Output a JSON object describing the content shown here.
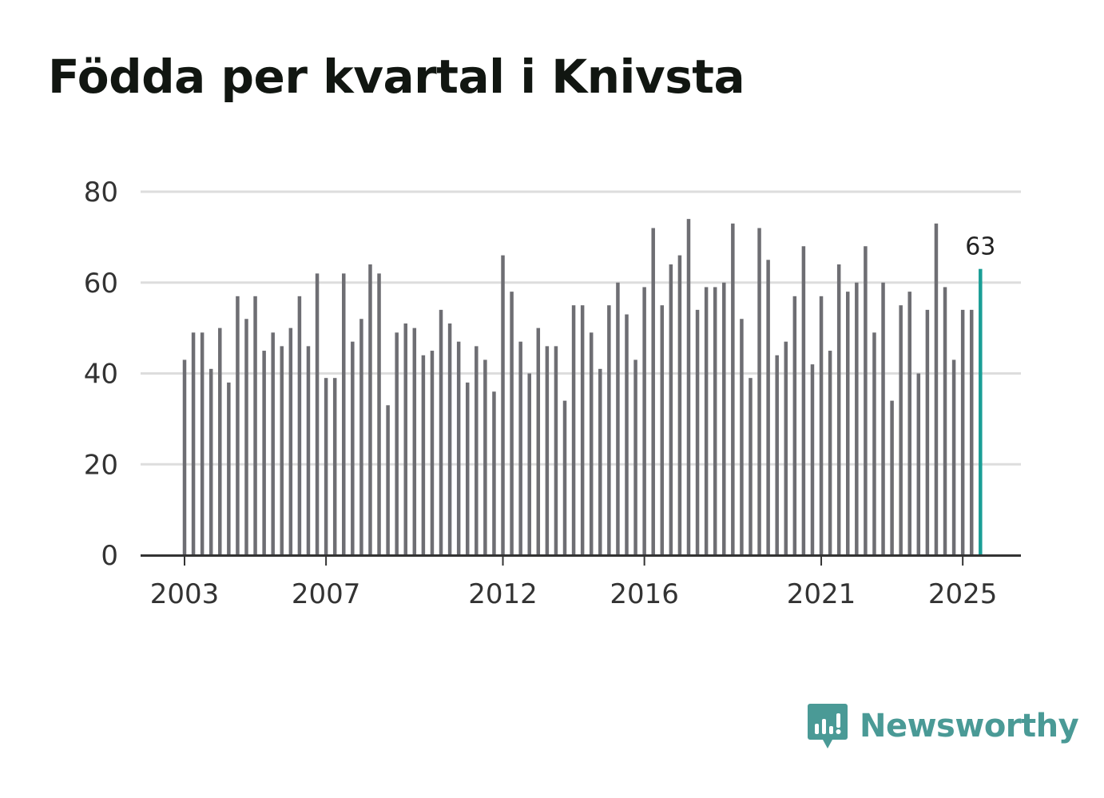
{
  "title": "Födda per kvartal i Knivsta",
  "brand": "Newsworthy",
  "colors": {
    "bar": "#6e6e73",
    "highlight": "#1a9e96",
    "grid": "#dddddd",
    "axis": "#333333",
    "brand": "#4a9a96"
  },
  "chart_data": {
    "type": "bar",
    "title": "Födda per kvartal i Knivsta",
    "xlabel": "",
    "ylabel": "",
    "ylim": [
      0,
      80
    ],
    "yticks": [
      0,
      20,
      40,
      60,
      80
    ],
    "xticks": [
      {
        "label": "2003",
        "index": 0
      },
      {
        "label": "2007",
        "index": 16
      },
      {
        "label": "2012",
        "index": 36
      },
      {
        "label": "2016",
        "index": 52
      },
      {
        "label": "2021",
        "index": 72
      },
      {
        "label": "2025",
        "index": 88
      }
    ],
    "highlight": {
      "index": 90,
      "label": "63"
    },
    "values": [
      43,
      49,
      49,
      41,
      50,
      38,
      57,
      52,
      57,
      45,
      49,
      46,
      50,
      57,
      46,
      62,
      39,
      39,
      62,
      47,
      52,
      64,
      62,
      33,
      49,
      51,
      50,
      44,
      45,
      54,
      51,
      47,
      38,
      46,
      43,
      36,
      66,
      58,
      47,
      40,
      50,
      46,
      46,
      34,
      55,
      55,
      49,
      41,
      55,
      60,
      53,
      43,
      59,
      72,
      55,
      64,
      66,
      74,
      54,
      59,
      59,
      60,
      73,
      52,
      39,
      72,
      65,
      44,
      47,
      57,
      68,
      42,
      57,
      45,
      64,
      58,
      60,
      68,
      49,
      60,
      34,
      55,
      58,
      40,
      54,
      73,
      59,
      43,
      54,
      54,
      63
    ]
  }
}
